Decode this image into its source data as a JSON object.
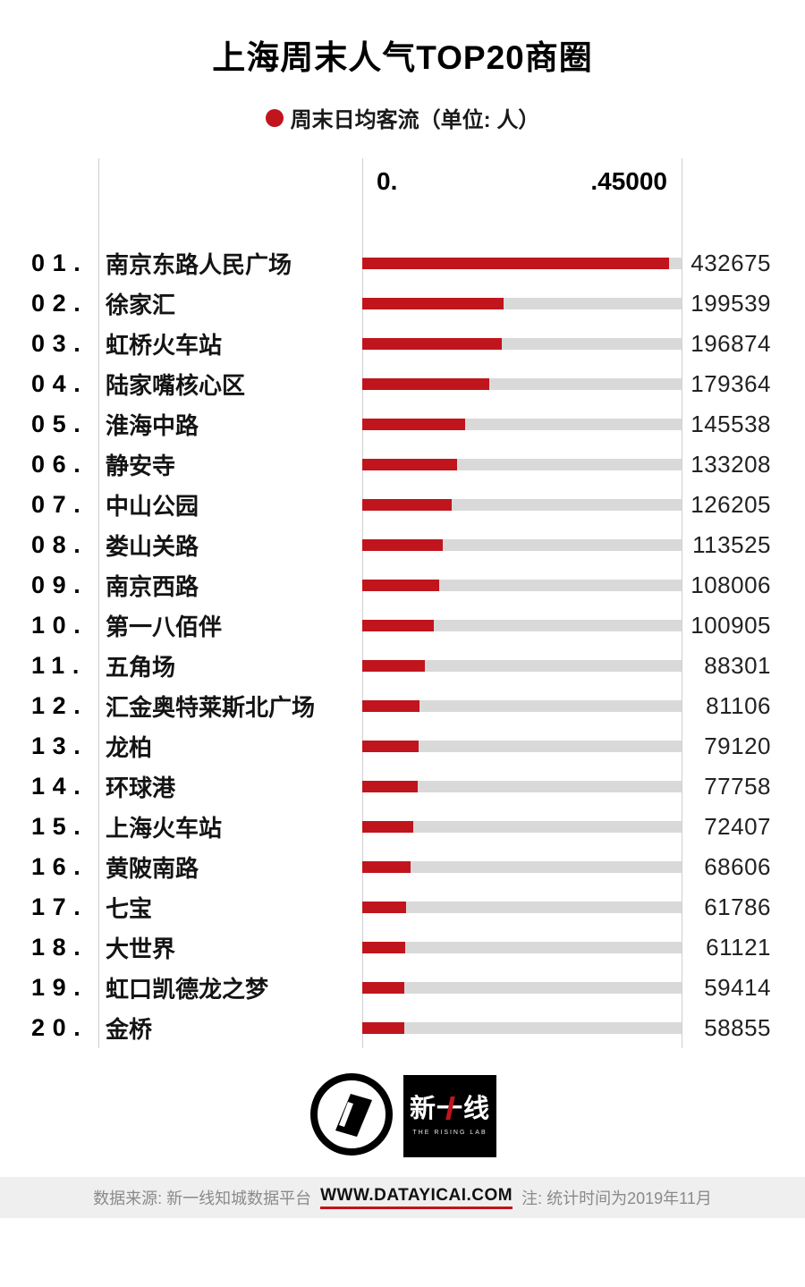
{
  "title": "上海周末人气TOP20商圈",
  "legend": {
    "label": "周末日均客流（单位: 人）"
  },
  "chart_data": {
    "type": "bar",
    "orientation": "horizontal",
    "title": "上海周末人气TOP20商圈",
    "legend": "周末日均客流（单位: 人）",
    "xlim": [
      0,
      450000
    ],
    "axis": {
      "left_label": "0.",
      "right_label": ".45000"
    },
    "ranks": [
      "01.",
      "02.",
      "03.",
      "04.",
      "05.",
      "06.",
      "07.",
      "08.",
      "09.",
      "10.",
      "11.",
      "12.",
      "13.",
      "14.",
      "15.",
      "16.",
      "17.",
      "18.",
      "19.",
      "20."
    ],
    "categories": [
      "南京东路人民广场",
      "徐家汇",
      "虹桥火车站",
      "陆家嘴核心区",
      "淮海中路",
      "静安寺",
      "中山公园",
      "娄山关路",
      "南京西路",
      "第一八佰伴",
      "五角场",
      "汇金奥特莱斯北广场",
      "龙柏",
      "环球港",
      "上海火车站",
      "黄陂南路",
      "七宝",
      "大世界",
      "虹口凯德龙之梦",
      "金桥"
    ],
    "values": [
      432675,
      199539,
      196874,
      179364,
      145538,
      133208,
      126205,
      113525,
      108006,
      100905,
      88301,
      81106,
      79120,
      77758,
      72407,
      68606,
      61786,
      61121,
      59414,
      58855
    ],
    "bar_color": "#c0151d",
    "track_color": "#d9d9d9",
    "grid": "vertical-rules"
  },
  "logos": {
    "yicai_icon": "yicai-circle-logo",
    "rising_lab": {
      "text": "新一线",
      "caption": "THE RISING LAB"
    }
  },
  "footer": {
    "source": "数据来源: 新一线知城数据平台",
    "site": "WWW.DATAYICAI.COM",
    "note": "注: 统计时间为2019年11月"
  }
}
